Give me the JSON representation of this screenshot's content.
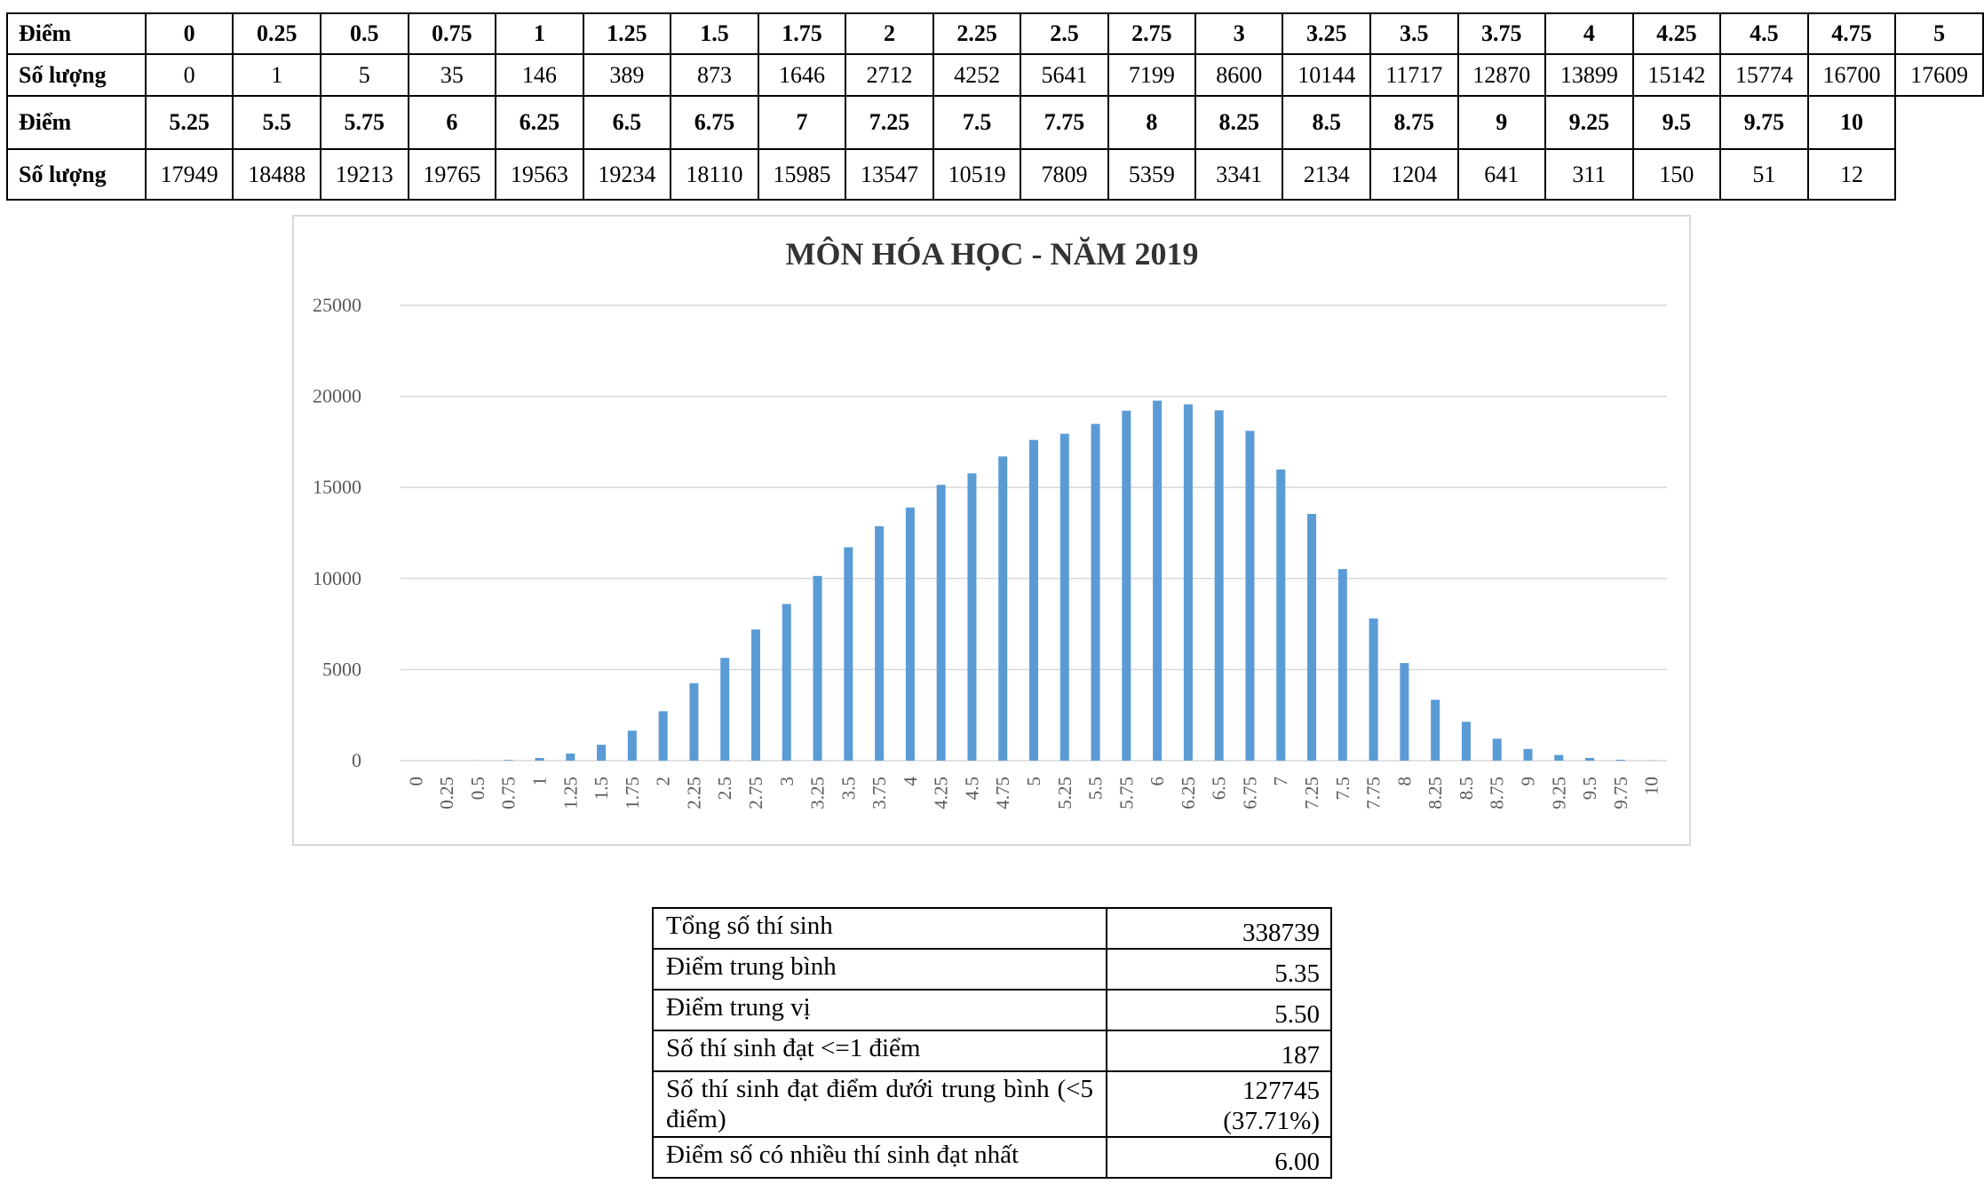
{
  "score_table": {
    "row_label_score": "Điểm",
    "row_label_count": "Số lượng",
    "part1": {
      "scores": [
        "0",
        "0.25",
        "0.5",
        "0.75",
        "1",
        "1.25",
        "1.5",
        "1.75",
        "2",
        "2.25",
        "2.5",
        "2.75",
        "3",
        "3.25",
        "3.5",
        "3.75",
        "4",
        "4.25",
        "4.5",
        "4.75",
        "5"
      ],
      "counts": [
        "0",
        "1",
        "5",
        "35",
        "146",
        "389",
        "873",
        "1646",
        "2712",
        "4252",
        "5641",
        "7199",
        "8600",
        "10144",
        "11717",
        "12870",
        "13899",
        "15142",
        "15774",
        "16700",
        "17609"
      ]
    },
    "part2": {
      "scores": [
        "5.25",
        "5.5",
        "5.75",
        "6",
        "6.25",
        "6.5",
        "6.75",
        "7",
        "7.25",
        "7.5",
        "7.75",
        "8",
        "8.25",
        "8.5",
        "8.75",
        "9",
        "9.25",
        "9.5",
        "9.75",
        "10"
      ],
      "counts": [
        "17949",
        "18488",
        "19213",
        "19765",
        "19563",
        "19234",
        "18110",
        "15985",
        "13547",
        "10519",
        "7809",
        "5359",
        "3341",
        "2134",
        "1204",
        "641",
        "311",
        "150",
        "51",
        "12"
      ]
    }
  },
  "chart_data": {
    "type": "bar",
    "title": "MÔN HÓA HỌC - NĂM 2019",
    "xlabel": "",
    "ylabel": "",
    "ylim": [
      0,
      25000
    ],
    "yticks": [
      "0",
      "5000",
      "10000",
      "15000",
      "20000",
      "25000"
    ],
    "grid": true,
    "bar_color": "#5B9BD5",
    "categories": [
      "0",
      "0.25",
      "0.5",
      "0.75",
      "1",
      "1.25",
      "1.5",
      "1.75",
      "2",
      "2.25",
      "2.5",
      "2.75",
      "3",
      "3.25",
      "3.5",
      "3.75",
      "4",
      "4.25",
      "4.5",
      "4.75",
      "5",
      "5.25",
      "5.5",
      "5.75",
      "6",
      "6.25",
      "6.5",
      "6.75",
      "7",
      "7.25",
      "7.5",
      "7.75",
      "8",
      "8.25",
      "8.5",
      "8.75",
      "9",
      "9.25",
      "9.5",
      "9.75",
      "10"
    ],
    "values": [
      0,
      1,
      5,
      35,
      146,
      389,
      873,
      1646,
      2712,
      4252,
      5641,
      7199,
      8600,
      10144,
      11717,
      12870,
      13899,
      15142,
      15774,
      16700,
      17609,
      17949,
      18488,
      19213,
      19765,
      19563,
      19234,
      18110,
      15985,
      13547,
      10519,
      7809,
      5359,
      3341,
      2134,
      1204,
      641,
      311,
      150,
      51,
      12
    ]
  },
  "stats": [
    {
      "label": "Tổng số thí sinh",
      "value": "338739"
    },
    {
      "label": "Điểm trung bình",
      "value": "5.35"
    },
    {
      "label": "Điểm trung vị",
      "value": "5.50"
    },
    {
      "label": "Số thí sinh đạt <=1 điểm",
      "value": "187"
    },
    {
      "label": "Số thí sinh đạt điểm dưới trung bình (<5 điểm)",
      "value": "127745",
      "value2": "(37.71%)"
    },
    {
      "label": "Điểm số có nhiều thí sinh đạt nhất",
      "value": "6.00"
    }
  ]
}
